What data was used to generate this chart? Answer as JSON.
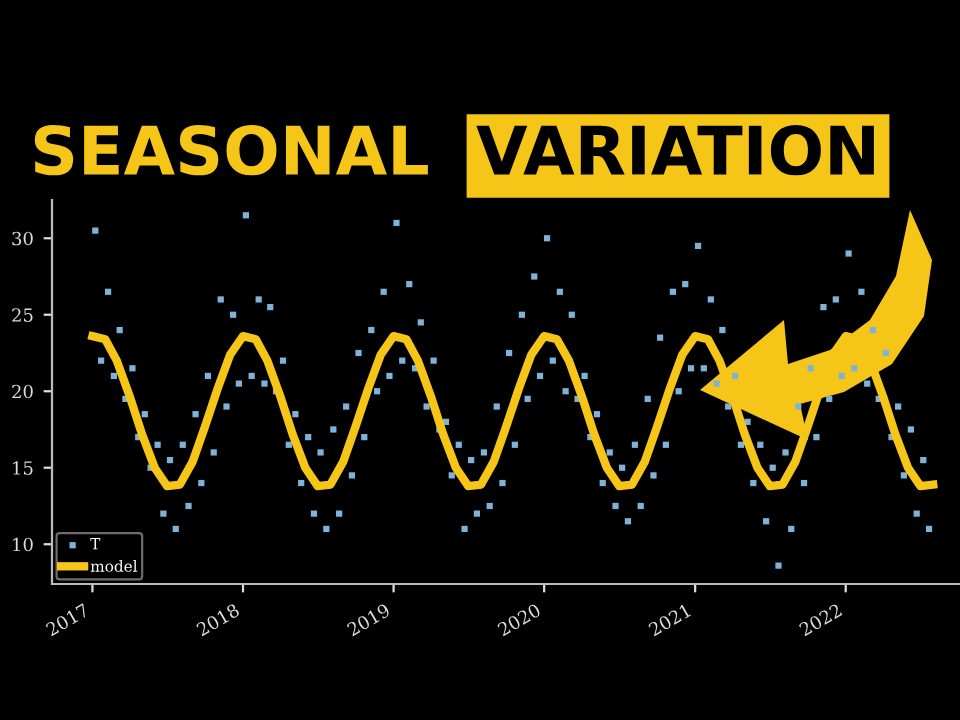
{
  "chart_data": {
    "type": "scatter",
    "title": "SEASONAL VARIATION",
    "series": [
      {
        "name": "T",
        "color": "#7fb2d9",
        "marker": "square",
        "x": [
          "2017-01-08",
          "2017-01-22",
          "2017-02-08",
          "2017-02-22",
          "2017-03-08",
          "2017-03-22",
          "2017-04-08",
          "2017-04-22",
          "2017-05-08",
          "2017-05-22",
          "2017-06-08",
          "2017-06-22",
          "2017-07-08",
          "2017-07-22",
          "2017-08-08",
          "2017-08-22",
          "2017-09-08",
          "2017-09-22",
          "2017-10-08",
          "2017-10-22",
          "2017-11-08",
          "2017-11-22",
          "2017-12-08",
          "2017-12-22",
          "2018-01-08",
          "2018-01-22",
          "2018-02-08",
          "2018-02-22",
          "2018-03-08",
          "2018-03-22",
          "2018-04-08",
          "2018-04-22",
          "2018-05-08",
          "2018-05-22",
          "2018-06-08",
          "2018-06-22",
          "2018-07-08",
          "2018-07-22",
          "2018-08-08",
          "2018-08-22",
          "2018-09-08",
          "2018-09-22",
          "2018-10-08",
          "2018-10-22",
          "2018-11-08",
          "2018-11-22",
          "2018-12-08",
          "2018-12-22",
          "2019-01-08",
          "2019-01-22",
          "2019-02-08",
          "2019-02-22",
          "2019-03-08",
          "2019-03-22",
          "2019-04-08",
          "2019-04-22",
          "2019-05-08",
          "2019-05-22",
          "2019-06-08",
          "2019-06-22",
          "2019-07-08",
          "2019-07-22",
          "2019-08-08",
          "2019-08-22",
          "2019-09-08",
          "2019-09-22",
          "2019-10-08",
          "2019-10-22",
          "2019-11-08",
          "2019-11-22",
          "2019-12-08",
          "2019-12-22",
          "2020-01-08",
          "2020-01-22",
          "2020-02-08",
          "2020-02-22",
          "2020-03-08",
          "2020-03-22",
          "2020-04-08",
          "2020-04-22",
          "2020-05-08",
          "2020-05-22",
          "2020-06-08",
          "2020-06-22",
          "2020-07-08",
          "2020-07-22",
          "2020-08-08",
          "2020-08-22",
          "2020-09-08",
          "2020-09-22",
          "2020-10-08",
          "2020-10-22",
          "2020-11-08",
          "2020-11-22",
          "2020-12-08",
          "2020-12-22",
          "2021-01-08",
          "2021-01-22",
          "2021-02-08",
          "2021-02-22",
          "2021-03-08",
          "2021-03-22",
          "2021-04-08",
          "2021-04-22",
          "2021-05-08",
          "2021-05-22",
          "2021-06-08",
          "2021-06-22",
          "2021-07-08",
          "2021-07-22",
          "2021-08-08",
          "2021-08-22",
          "2021-09-08",
          "2021-09-22",
          "2021-10-08",
          "2021-10-22",
          "2021-11-08",
          "2021-11-22",
          "2021-12-08",
          "2021-12-22",
          "2022-01-08",
          "2022-01-22",
          "2022-02-08",
          "2022-02-22",
          "2022-03-08",
          "2022-03-22",
          "2022-04-08",
          "2022-04-22",
          "2022-05-08",
          "2022-05-22",
          "2022-06-08",
          "2022-06-22",
          "2022-07-08",
          "2022-07-22"
        ],
        "values": [
          30.5,
          22.0,
          26.5,
          21.0,
          24.0,
          19.5,
          21.5,
          17.0,
          18.5,
          15.0,
          16.5,
          12.0,
          15.5,
          11.0,
          16.5,
          12.5,
          18.5,
          14.0,
          21.0,
          16.0,
          26.0,
          19.0,
          25.0,
          20.5,
          31.5,
          21.0,
          26.0,
          20.5,
          25.5,
          20.0,
          22.0,
          16.5,
          18.5,
          14.0,
          17.0,
          12.0,
          16.0,
          11.0,
          17.5,
          12.0,
          19.0,
          14.5,
          22.5,
          17.0,
          24.0,
          20.0,
          26.5,
          21.0,
          31.0,
          22.0,
          27.0,
          21.5,
          24.5,
          19.0,
          22.0,
          17.5,
          18.0,
          14.5,
          16.5,
          11.0,
          15.5,
          12.0,
          16.0,
          12.5,
          19.0,
          14.0,
          22.5,
          16.5,
          25.0,
          19.5,
          27.5,
          21.0,
          30.0,
          22.0,
          26.5,
          20.0,
          25.0,
          19.5,
          21.0,
          17.0,
          18.5,
          14.0,
          16.0,
          12.5,
          15.0,
          11.5,
          16.5,
          12.5,
          19.5,
          14.5,
          23.5,
          16.5,
          26.5,
          20.0,
          27.0,
          21.5,
          29.5,
          21.5,
          26.0,
          20.5,
          24.0,
          19.0,
          21.0,
          16.5,
          18.0,
          14.0,
          16.5,
          11.5,
          15.0,
          8.6,
          16.0,
          11.0,
          19.0,
          14.0,
          21.5,
          17.0,
          25.5,
          19.5,
          26.0,
          21.0,
          29.0,
          21.5,
          26.5,
          20.5,
          24.0,
          19.5,
          22.5,
          17.0,
          19.0,
          14.5,
          17.5,
          12.0,
          15.5,
          11.0
        ]
      },
      {
        "name": "model",
        "type": "line",
        "color": "#f5c518",
        "line_style": "solid",
        "x": [
          "2017-01-01",
          "2017-02-01",
          "2017-03-01",
          "2017-04-01",
          "2017-05-01",
          "2017-06-01",
          "2017-07-01",
          "2017-08-01",
          "2017-09-01",
          "2017-10-01",
          "2017-11-01",
          "2017-12-01",
          "2018-01-01",
          "2018-02-01",
          "2018-03-01",
          "2018-04-01",
          "2018-05-01",
          "2018-06-01",
          "2018-07-01",
          "2018-08-01",
          "2018-09-01",
          "2018-10-01",
          "2018-11-01",
          "2018-12-01",
          "2019-01-01",
          "2019-02-01",
          "2019-03-01",
          "2019-04-01",
          "2019-05-01",
          "2019-06-01",
          "2019-07-01",
          "2019-08-01",
          "2019-09-01",
          "2019-10-01",
          "2019-11-01",
          "2019-12-01",
          "2020-01-01",
          "2020-02-01",
          "2020-03-01",
          "2020-04-01",
          "2020-05-01",
          "2020-06-01",
          "2020-07-01",
          "2020-08-01",
          "2020-09-01",
          "2020-10-01",
          "2020-11-01",
          "2020-12-01",
          "2021-01-01",
          "2021-02-01",
          "2021-03-01",
          "2021-04-01",
          "2021-05-01",
          "2021-06-01",
          "2021-07-01",
          "2021-08-01",
          "2021-09-01",
          "2021-10-01",
          "2021-11-01",
          "2021-12-01",
          "2022-01-01",
          "2022-02-01",
          "2022-03-01",
          "2022-04-01",
          "2022-05-01",
          "2022-06-01",
          "2022-07-01",
          "2022-08-01"
        ],
        "values": [
          23.6,
          23.4,
          22.0,
          19.7,
          17.2,
          15.0,
          13.8,
          13.9,
          15.4,
          17.7,
          20.2,
          22.4,
          23.6,
          23.4,
          22.0,
          19.7,
          17.2,
          15.0,
          13.8,
          13.9,
          15.4,
          17.7,
          20.2,
          22.4,
          23.6,
          23.4,
          22.0,
          19.7,
          17.2,
          15.0,
          13.8,
          13.9,
          15.4,
          17.7,
          20.2,
          22.4,
          23.6,
          23.4,
          22.0,
          19.7,
          17.2,
          15.0,
          13.8,
          13.9,
          15.4,
          17.7,
          20.2,
          22.4,
          23.6,
          23.4,
          22.0,
          19.7,
          17.2,
          15.0,
          13.8,
          13.9,
          15.4,
          17.7,
          20.2,
          22.4,
          23.6,
          23.4,
          22.0,
          19.7,
          17.2,
          15.0,
          13.8,
          13.9
        ]
      }
    ],
    "xlim": [
      "2016-09-25",
      "2022-10-05"
    ],
    "xticks": [
      {
        "value": "2017-01-01",
        "label": "2017"
      },
      {
        "value": "2018-01-01",
        "label": "2018"
      },
      {
        "value": "2019-01-01",
        "label": "2019"
      },
      {
        "value": "2020-01-01",
        "label": "2020"
      },
      {
        "value": "2021-01-01",
        "label": "2021"
      },
      {
        "value": "2022-01-01",
        "label": "2022"
      }
    ],
    "ylim": [
      7.4,
      32.5
    ],
    "yticks": [
      10,
      15,
      20,
      25,
      30
    ],
    "grid": false,
    "legend": "bottom left"
  }
}
